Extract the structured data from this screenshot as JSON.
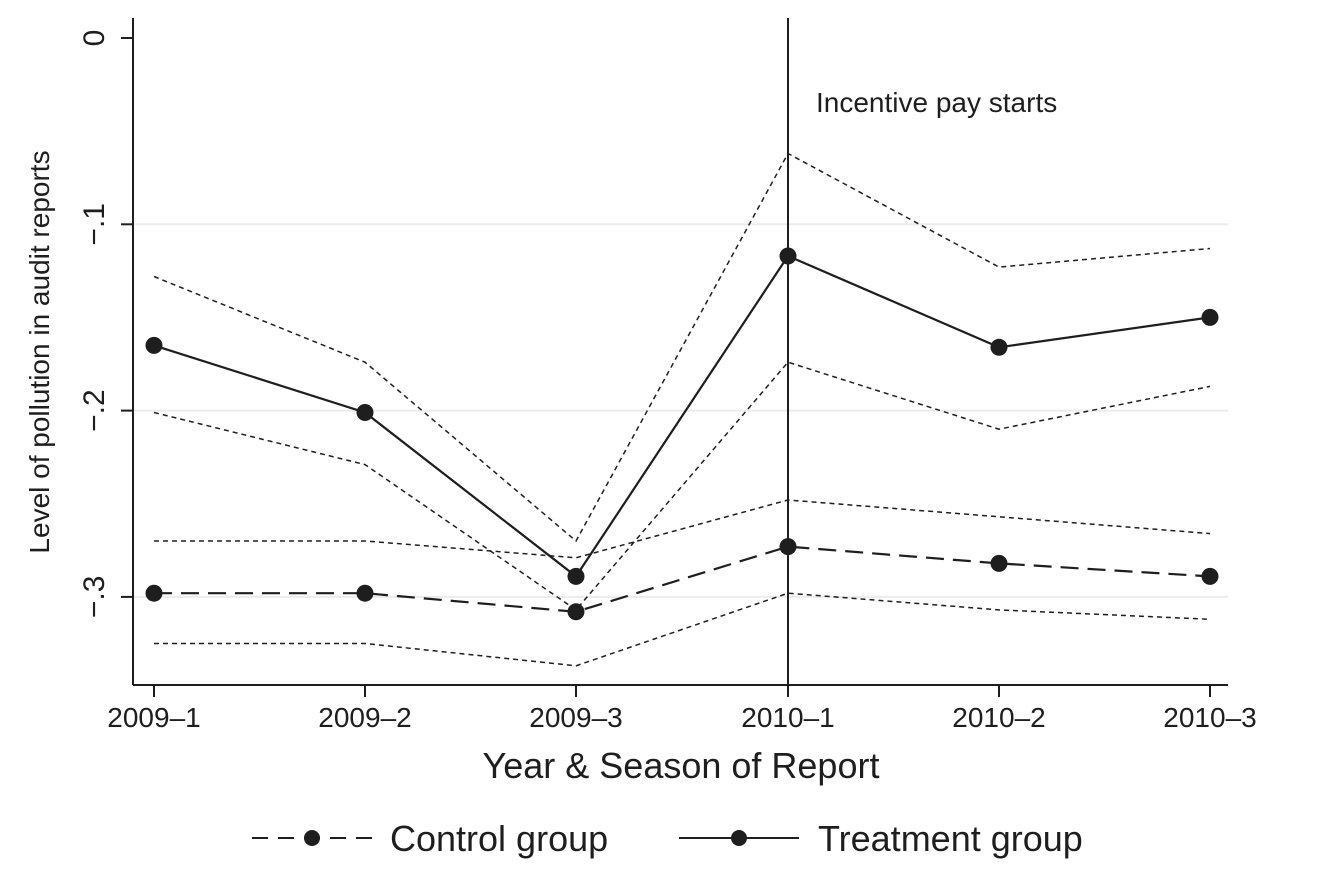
{
  "chart_data": {
    "type": "line",
    "categories": [
      "2009–1",
      "2009–2",
      "2009–3",
      "2010–1",
      "2010–2",
      "2010–3"
    ],
    "xlabel": "Year & Season of Report",
    "ylabel": "Level of pollution in audit reports",
    "ylim": [
      -0.35,
      0.01
    ],
    "yticks": [
      0,
      -0.1,
      -0.2,
      -0.3
    ],
    "ytick_labels": [
      "0",
      "−.1",
      "−.2",
      "−.3"
    ],
    "grid": "horizontal",
    "legend_position": "bottom",
    "annotations": [
      {
        "text": "Incentive pay starts",
        "category": "2010–1",
        "type": "vertical-line"
      }
    ],
    "series": [
      {
        "name": "Treatment group",
        "color": "#1e1e1e",
        "line_style": "solid",
        "marker": "circle",
        "values": [
          -0.165,
          -0.201,
          -0.289,
          -0.117,
          -0.166,
          -0.15
        ],
        "ci_upper": [
          -0.128,
          -0.174,
          -0.27,
          -0.062,
          -0.123,
          -0.113
        ],
        "ci_lower": [
          -0.201,
          -0.229,
          -0.307,
          -0.174,
          -0.21,
          -0.187
        ]
      },
      {
        "name": "Control group",
        "color": "#1e1e1e",
        "line_style": "dashed",
        "marker": "circle",
        "values": [
          -0.298,
          -0.298,
          -0.308,
          -0.273,
          -0.282,
          -0.289
        ],
        "ci_upper": [
          -0.27,
          -0.27,
          -0.279,
          -0.248,
          -0.257,
          -0.266
        ],
        "ci_lower": [
          -0.325,
          -0.325,
          -0.337,
          -0.298,
          -0.307,
          -0.312
        ]
      }
    ]
  }
}
